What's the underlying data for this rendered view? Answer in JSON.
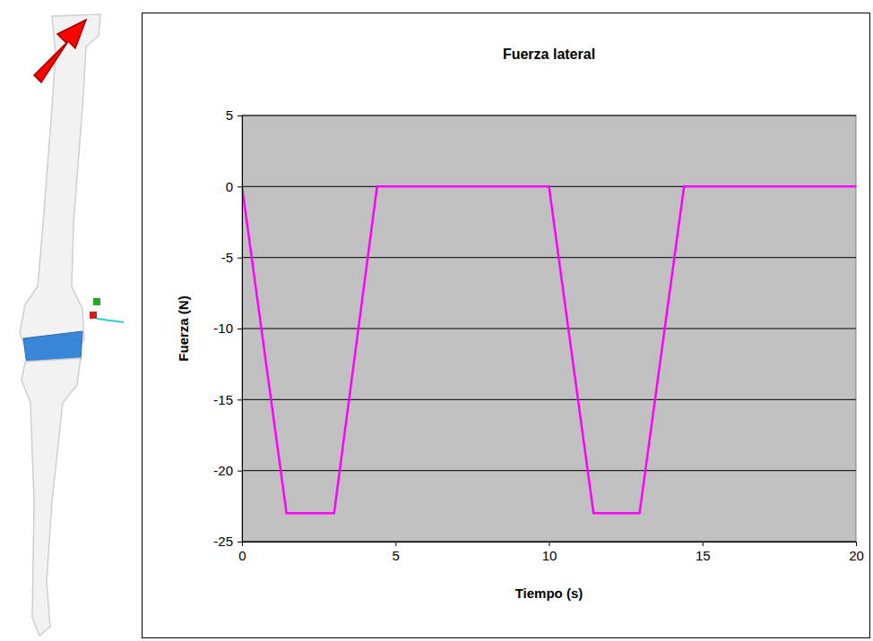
{
  "chart_data": {
    "type": "line",
    "title": "Fuerza lateral",
    "x_label": "Tiempo (s)",
    "y_label": "Fuerza (N)",
    "x": [
      0,
      1.45,
      3.0,
      4.4,
      10.0,
      11.45,
      12.95,
      14.4,
      20
    ],
    "values": [
      0,
      -23,
      -23,
      0,
      0,
      -23,
      -23,
      0,
      0
    ],
    "color": "#ff00ff",
    "xlim": [
      0,
      20
    ],
    "xticks": [
      0,
      5,
      10,
      15,
      20
    ],
    "ylim": [
      -25,
      5
    ],
    "yticks": [
      -25,
      -20,
      -15,
      -10,
      -5,
      0,
      5
    ],
    "grid": true
  }
}
